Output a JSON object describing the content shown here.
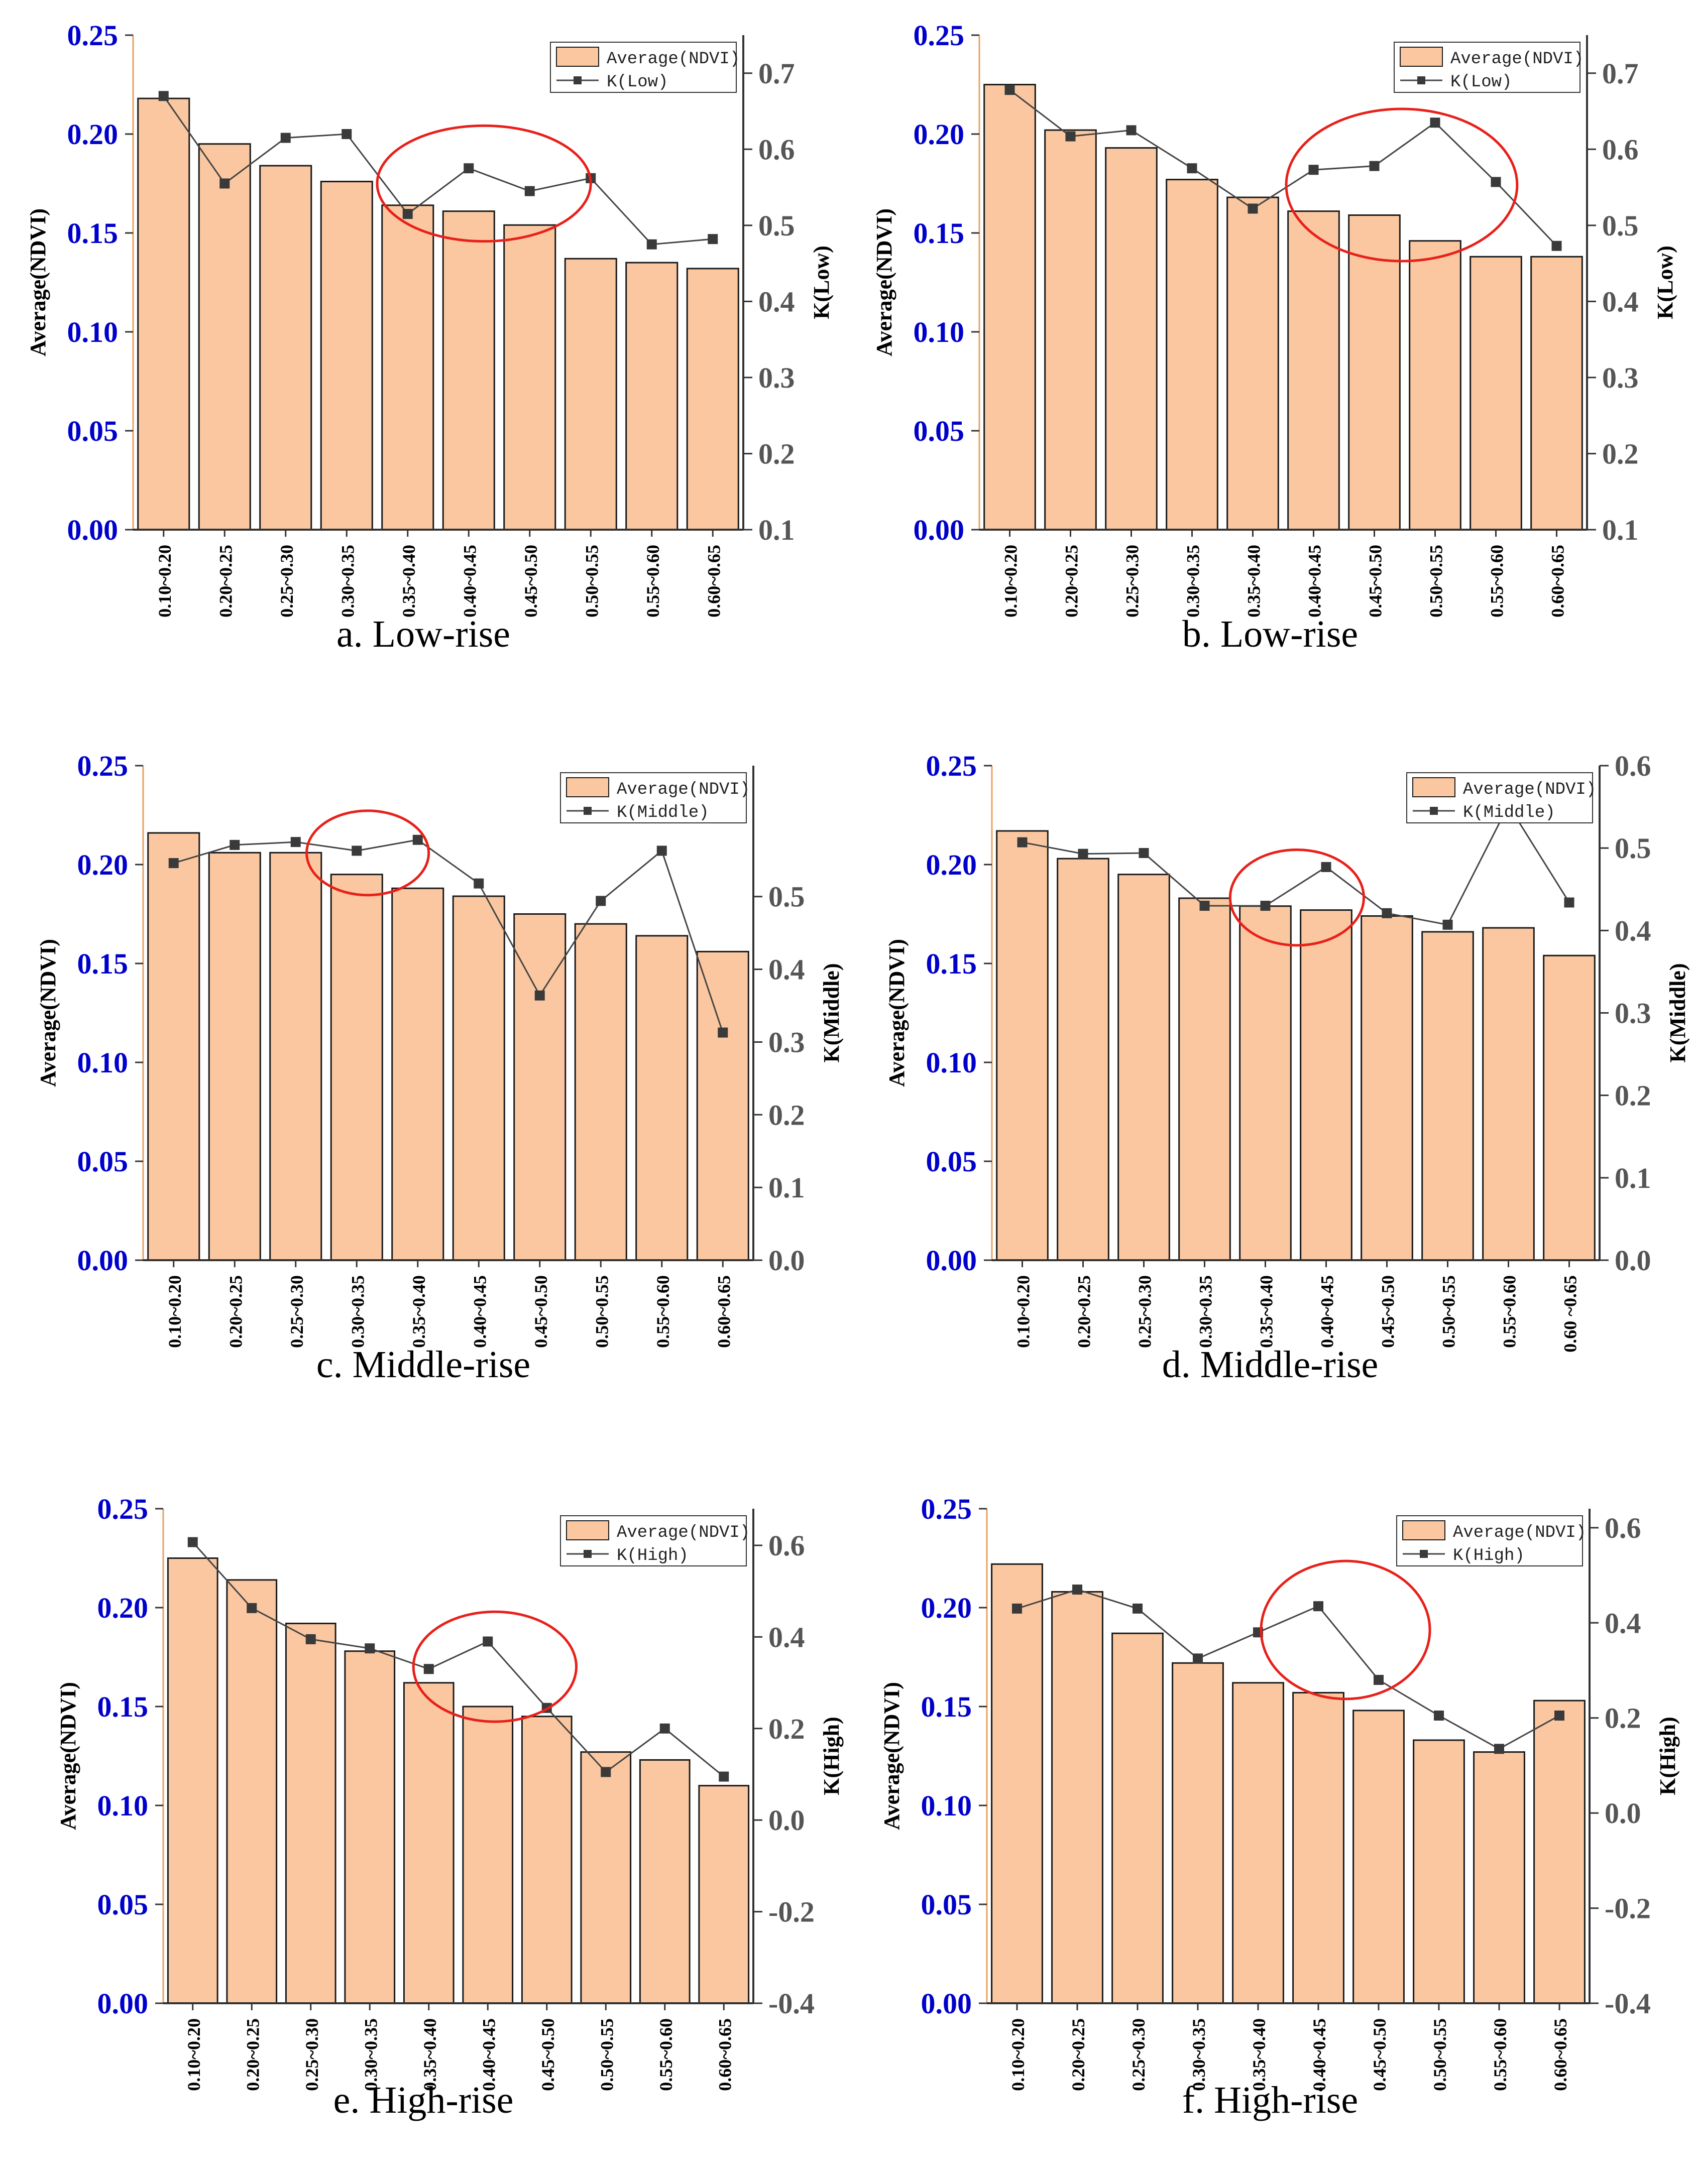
{
  "colors": {
    "bar_fill": "#FAC7A0",
    "bar_stroke": "#1a1a1a",
    "line": "#444444",
    "marker": "#3a3a3a",
    "left_tick": "#0000CC",
    "right_tick": "#555555",
    "highlight": "#E8201A",
    "left_axis_line": "#E8A060"
  },
  "chart_data": [
    {
      "id": "a",
      "type": "bar",
      "caption": "a. Low-rise",
      "categories": [
        "0.10~0.20",
        "0.20~0.25",
        "0.25~0.30",
        "0.30~0.35",
        "0.35~0.40",
        "0.40~0.45",
        "0.45~0.50",
        "0.50~0.55",
        "0.55~0.60",
        "0.60~0.65"
      ],
      "series": [
        {
          "name": "Average(NDVI)",
          "axis": "left",
          "kind": "bar",
          "values": [
            0.218,
            0.195,
            0.184,
            0.176,
            0.164,
            0.161,
            0.154,
            0.137,
            0.135,
            0.132
          ]
        },
        {
          "name": "K(Low)",
          "axis": "right",
          "kind": "line",
          "values": [
            0.67,
            0.555,
            0.615,
            0.62,
            0.515,
            0.575,
            0.545,
            0.562,
            0.475,
            0.482
          ]
        }
      ],
      "ylabel": "Average(NDVI)",
      "ylabel_right": "K(Low)",
      "ylim": [
        0,
        0.25
      ],
      "yticks": [
        "0.00",
        "0.05",
        "0.10",
        "0.15",
        "0.20",
        "0.25"
      ],
      "ylim_right": [
        0.1,
        0.75
      ],
      "yticks_right": [
        "0.1",
        "0.2",
        "0.3",
        "0.4",
        "0.5",
        "0.6",
        "0.7"
      ],
      "legend_position": "top-right",
      "highlight": {
        "cx": 5.75,
        "cy": 0.555,
        "rx": 1.75,
        "ry": 0.076
      }
    },
    {
      "id": "b",
      "type": "bar",
      "caption": "b. Low-rise",
      "categories": [
        "0.10~0.20",
        "0.20~0.25",
        "0.25~0.30",
        "0.30~0.35",
        "0.35~0.40",
        "0.40~0.45",
        "0.45~0.50",
        "0.50~0.55",
        "0.55~0.60",
        "0.60~0.65"
      ],
      "series": [
        {
          "name": "Average(NDVI)",
          "axis": "left",
          "kind": "bar",
          "values": [
            0.225,
            0.202,
            0.193,
            0.177,
            0.168,
            0.161,
            0.159,
            0.146,
            0.138,
            0.138
          ]
        },
        {
          "name": "K(Low)",
          "axis": "right",
          "kind": "line",
          "values": [
            0.678,
            0.617,
            0.625,
            0.575,
            0.522,
            0.573,
            0.578,
            0.635,
            0.557,
            0.473
          ]
        }
      ],
      "ylabel": "Average(NDVI)",
      "ylabel_right": "K(Low)",
      "ylim": [
        0,
        0.25
      ],
      "yticks": [
        "0.00",
        "0.05",
        "0.10",
        "0.15",
        "0.20",
        "0.25"
      ],
      "ylim_right": [
        0.1,
        0.75
      ],
      "yticks_right": [
        "0.1",
        "0.2",
        "0.3",
        "0.4",
        "0.5",
        "0.6",
        "0.7"
      ],
      "legend_position": "top-right",
      "highlight": {
        "cx": 6.95,
        "cy": 0.553,
        "rx": 1.9,
        "ry": 0.1
      }
    },
    {
      "id": "c",
      "type": "bar",
      "caption": "c. Middle-rise",
      "categories": [
        "0.10~0.20",
        "0.20~0.25",
        "0.25~0.30",
        "0.30~0.35",
        "0.35~0.40",
        "0.40~0.45",
        "0.45~0.50",
        "0.50~0.55",
        "0.55~0.60",
        "0.60~0.65"
      ],
      "series": [
        {
          "name": "Average(NDVI)",
          "axis": "left",
          "kind": "bar",
          "values": [
            0.216,
            0.206,
            0.206,
            0.195,
            0.188,
            0.184,
            0.175,
            0.17,
            0.164,
            0.156
          ]
        },
        {
          "name": "K(Middle)",
          "axis": "right",
          "kind": "line",
          "values": [
            0.546,
            0.571,
            0.575,
            0.563,
            0.578,
            0.518,
            0.364,
            0.494,
            0.563,
            0.313
          ]
        }
      ],
      "ylabel": "Average(NDVI)",
      "ylabel_right": "K(Middle)",
      "ylim": [
        0,
        0.25
      ],
      "yticks": [
        "0.00",
        "0.05",
        "0.10",
        "0.15",
        "0.20",
        "0.25"
      ],
      "ylim_right": [
        0,
        0.68
      ],
      "yticks_right": [
        "0.0",
        "0.1",
        "0.2",
        "0.3",
        "0.4",
        "0.5"
      ],
      "legend_position": "top-right",
      "highlight": {
        "cx": 3.68,
        "cy": 0.56,
        "rx": 1.0,
        "ry": 0.058
      }
    },
    {
      "id": "d",
      "type": "bar",
      "caption": "d. Middle-rise",
      "categories": [
        "0.10~0.20",
        "0.20~0.25",
        "0.25~0.30",
        "0.30~0.35",
        "0.35~0.40",
        "0.40~0.45",
        "0.45~0.50",
        "0.50~0.55",
        "0.55~0.60",
        "0.60 ~0.65"
      ],
      "series": [
        {
          "name": "Average(NDVI)",
          "axis": "left",
          "kind": "bar",
          "values": [
            0.217,
            0.203,
            0.195,
            0.183,
            0.179,
            0.177,
            0.174,
            0.166,
            0.168,
            0.154
          ]
        },
        {
          "name": "K(Middle)",
          "axis": "right",
          "kind": "line",
          "values": [
            0.507,
            0.493,
            0.494,
            0.43,
            0.43,
            0.477,
            0.421,
            0.407,
            0.552,
            0.434
          ]
        }
      ],
      "ylabel": "Average(NDVI)",
      "ylabel_right": "K(Middle)",
      "ylim": [
        0,
        0.25
      ],
      "yticks": [
        "0.00",
        "0.05",
        "0.10",
        "0.15",
        "0.20",
        "0.25"
      ],
      "ylim_right": [
        0,
        0.6
      ],
      "yticks_right": [
        "0.0",
        "0.1",
        "0.2",
        "0.3",
        "0.4",
        "0.5",
        "0.6"
      ],
      "legend_position": "top-right",
      "highlight": {
        "cx": 5.02,
        "cy": 0.44,
        "rx": 1.1,
        "ry": 0.058
      }
    },
    {
      "id": "e",
      "type": "bar",
      "caption": "e. High-rise",
      "categories": [
        "0.10~0.20",
        "0.20~0.25",
        "0.25~0.30",
        "0.30~0.35",
        "0.35~0.40",
        "0.40~0.45",
        "0.45~0.50",
        "0.50~0.55",
        "0.55~0.60",
        "0.60~0.65"
      ],
      "series": [
        {
          "name": "Average(NDVI)",
          "axis": "left",
          "kind": "bar",
          "values": [
            0.225,
            0.214,
            0.192,
            0.178,
            0.162,
            0.15,
            0.145,
            0.127,
            0.123,
            0.11
          ]
        },
        {
          "name": "K(High)",
          "axis": "right",
          "kind": "line",
          "values": [
            0.607,
            0.463,
            0.395,
            0.375,
            0.33,
            0.39,
            0.245,
            0.105,
            0.2,
            0.095
          ]
        }
      ],
      "ylabel": "Average(NDVI)",
      "ylabel_right": "K(High)",
      "ylim": [
        0,
        0.25
      ],
      "yticks": [
        "0.00",
        "0.05",
        "0.10",
        "0.15",
        "0.20",
        "0.25"
      ],
      "ylim_right": [
        -0.4,
        0.68
      ],
      "yticks_right": [
        "-0.4",
        "-0.2",
        "0.0",
        "0.2",
        "0.4",
        "0.6"
      ],
      "legend_position": "top-right",
      "highlight": {
        "cx": 5.62,
        "cy": 0.335,
        "rx": 1.38,
        "ry": 0.12
      }
    },
    {
      "id": "f",
      "type": "bar",
      "caption": "f. High-rise",
      "categories": [
        "0.10~0.20",
        "0.20~0.25",
        "0.25~0.30",
        "0.30~0.35",
        "0.35~0.40",
        "0.40~0.45",
        "0.45~0.50",
        "0.50~0.55",
        "0.55~0.60",
        "0.60~0.65"
      ],
      "series": [
        {
          "name": "Average(NDVI)",
          "axis": "left",
          "kind": "bar",
          "values": [
            0.222,
            0.208,
            0.187,
            0.172,
            0.162,
            0.157,
            0.148,
            0.133,
            0.127,
            0.153
          ]
        },
        {
          "name": "K(High)",
          "axis": "right",
          "kind": "line",
          "values": [
            0.43,
            0.47,
            0.43,
            0.325,
            0.38,
            0.435,
            0.28,
            0.205,
            0.135,
            0.205
          ]
        }
      ],
      "ylabel": "Average(NDVI)",
      "ylabel_right": "K(High)",
      "ylim": [
        0,
        0.25
      ],
      "yticks": [
        "0.00",
        "0.05",
        "0.10",
        "0.15",
        "0.20",
        "0.25"
      ],
      "ylim_right": [
        -0.4,
        0.64
      ],
      "yticks_right": [
        "-0.4",
        "-0.2",
        "0.0",
        "0.2",
        "0.4",
        "0.6"
      ],
      "legend_position": "top-right",
      "highlight": {
        "cx": 5.95,
        "cy": 0.385,
        "rx": 1.4,
        "ry": 0.145
      }
    }
  ]
}
